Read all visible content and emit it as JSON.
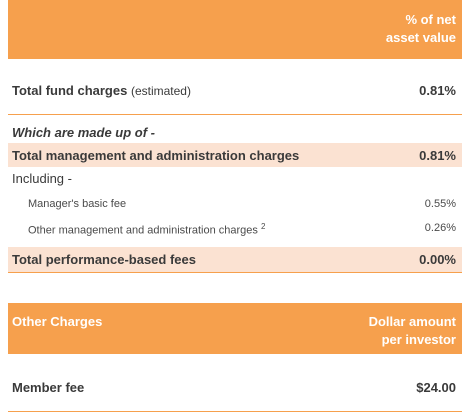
{
  "fund_charges_table": {
    "header_right_line1": "% of net",
    "header_right_line2": "asset value",
    "total_fund_charges": {
      "label": "Total fund charges",
      "qualifier": "(estimated)",
      "value": "0.81%"
    },
    "made_up_of_label": "Which are made up of -",
    "total_mgmt_admin": {
      "label": "Total management and administration charges",
      "value": "0.81%"
    },
    "including_label": "Including -",
    "managers_basic_fee": {
      "label": "Manager's basic fee",
      "value": "0.55%"
    },
    "other_mgmt_admin": {
      "label": "Other management and administration charges",
      "superscript": "2",
      "value": "0.26%"
    },
    "total_performance_fees": {
      "label": "Total performance-based fees",
      "value": "0.00%"
    }
  },
  "other_charges_table": {
    "header_left": "Other Charges",
    "header_right_line1": "Dollar amount",
    "header_right_line2": "per investor",
    "member_fee": {
      "label": "Member fee",
      "value": "$24.00"
    }
  }
}
